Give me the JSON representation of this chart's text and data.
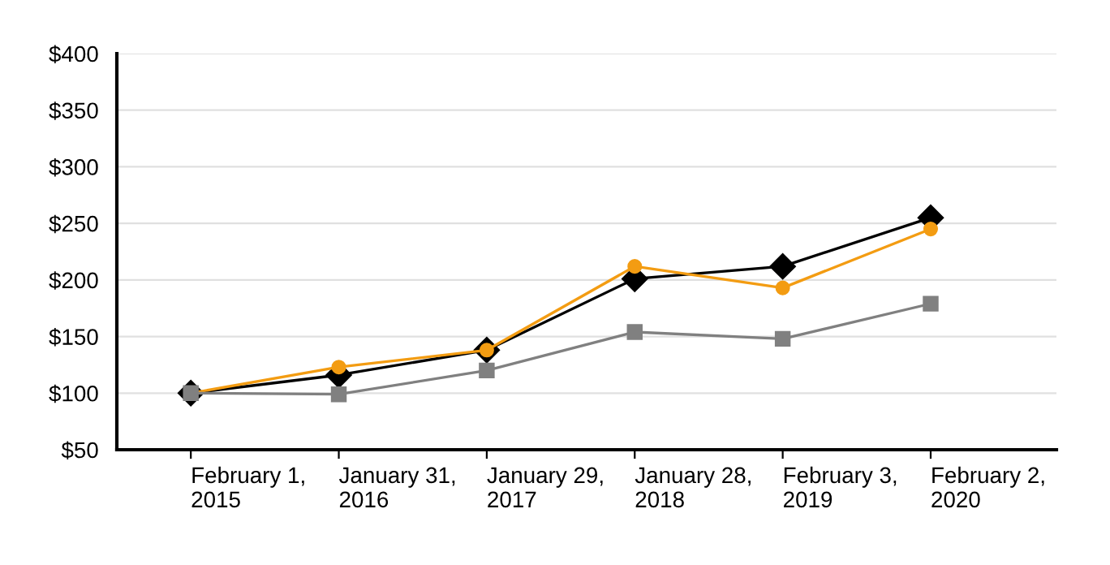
{
  "chart_data": {
    "type": "line",
    "categories": [
      "February 1,\n2015",
      "January 31,\n2016",
      "January 29,\n2017",
      "January 28,\n2018",
      "February 3,\n2019",
      "February 2,\n2020"
    ],
    "series": [
      {
        "color": "#000000",
        "marker": "diamond",
        "values": [
          100,
          116,
          138,
          201,
          212,
          255
        ]
      },
      {
        "color": "#f39c12",
        "marker": "circle",
        "values": [
          100,
          123,
          138,
          212,
          193,
          245
        ]
      },
      {
        "color": "#808080",
        "marker": "square",
        "values": [
          100,
          99,
          120,
          154,
          148,
          179
        ]
      }
    ],
    "ylim": [
      50,
      400
    ],
    "yticks": [
      {
        "value": 50,
        "label": "$50"
      },
      {
        "value": 100,
        "label": "$100"
      },
      {
        "value": 150,
        "label": "$150"
      },
      {
        "value": 200,
        "label": "$200"
      },
      {
        "value": 250,
        "label": "$250"
      },
      {
        "value": 300,
        "label": "$300"
      },
      {
        "value": 350,
        "label": "$350"
      },
      {
        "value": 400,
        "label": "$400"
      }
    ],
    "grid": "y",
    "legend": false,
    "line_style": "solid"
  }
}
